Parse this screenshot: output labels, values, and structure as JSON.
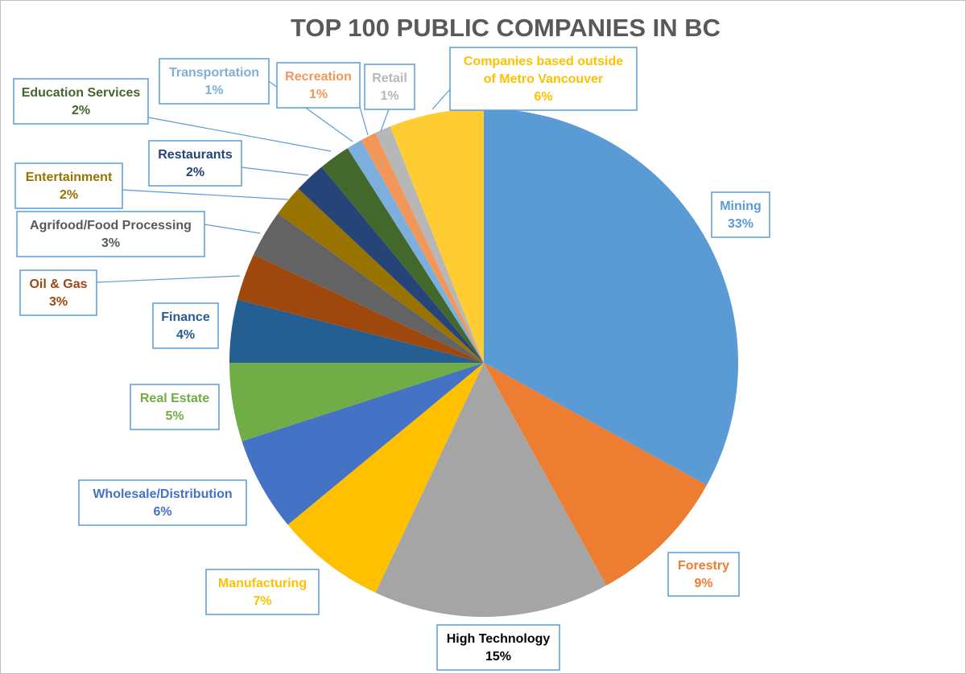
{
  "chart_data": {
    "type": "pie",
    "title": "TOP 100 PUBLIC COMPANIES IN BC",
    "slices": [
      {
        "label": "Mining",
        "value": 33,
        "value_label": "33%",
        "color": "#5b9bd5",
        "label_color": "#5b9bd5"
      },
      {
        "label": "Forestry",
        "value": 9,
        "value_label": "9%",
        "color": "#ed7d31",
        "label_color": "#ed7d31"
      },
      {
        "label": "High Technology",
        "value": 15,
        "value_label": "15%",
        "color": "#a5a5a5",
        "label_color": "#000000"
      },
      {
        "label": "Manufacturing",
        "value": 7,
        "value_label": "7%",
        "color": "#ffc000",
        "label_color": "#ffc000"
      },
      {
        "label": "Wholesale/Distribution",
        "value": 6,
        "value_label": "6%",
        "color": "#4472c4",
        "label_color": "#4472c4"
      },
      {
        "label": "Real Estate",
        "value": 5,
        "value_label": "5%",
        "color": "#70ad47",
        "label_color": "#70ad47"
      },
      {
        "label": "Finance",
        "value": 4,
        "value_label": "4%",
        "color": "#255e91",
        "label_color": "#255e91"
      },
      {
        "label": "Oil & Gas",
        "value": 3,
        "value_label": "3%",
        "color": "#9e480e",
        "label_color": "#9e480e"
      },
      {
        "label": "Agrifood/Food Processing",
        "value": 3,
        "value_label": "3%",
        "color": "#636363",
        "label_color": "#595959"
      },
      {
        "label": "Entertainment",
        "value": 2,
        "value_label": "2%",
        "color": "#997300",
        "label_color": "#997300"
      },
      {
        "label": "Restaurants",
        "value": 2,
        "value_label": "2%",
        "color": "#264478",
        "label_color": "#264478"
      },
      {
        "label": "Education Services",
        "value": 2,
        "value_label": "2%",
        "color": "#43682b",
        "label_color": "#43682b"
      },
      {
        "label": "Transportation",
        "value": 1,
        "value_label": "1%",
        "color": "#7cafdd",
        "label_color": "#7cafdd"
      },
      {
        "label": "Recreation",
        "value": 1,
        "value_label": "1%",
        "color": "#f1975a",
        "label_color": "#f1975a"
      },
      {
        "label": "Retail",
        "value": 1,
        "value_label": "1%",
        "color": "#b7b7b7",
        "label_color": "#b7b7b7"
      },
      {
        "label": "Companies based outside of Metro Vancouver",
        "label_lines": [
          "Companies based outside",
          "of Metro Vancouver"
        ],
        "value": 6,
        "value_label": "6%",
        "color": "#ffcd33",
        "label_color": "#ffc000"
      }
    ],
    "legend": "none",
    "data_labels": "callout"
  }
}
